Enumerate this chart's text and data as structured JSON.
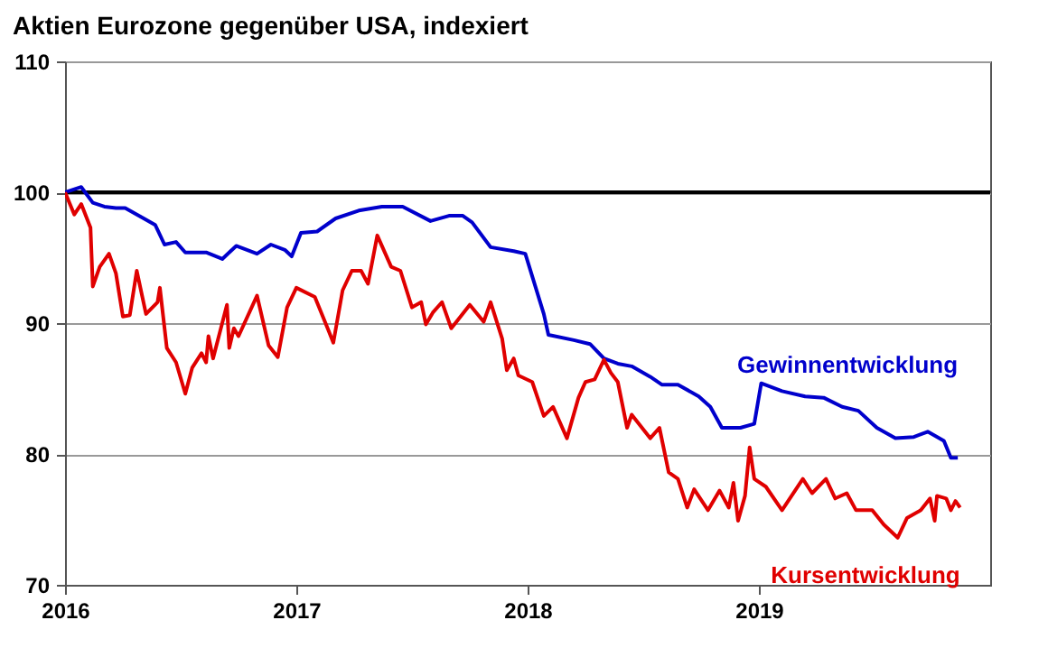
{
  "chart_data": {
    "type": "line",
    "title": "Aktien Eurozone gegenüber USA, indexiert",
    "xlim": [
      2016,
      2020
    ],
    "xticks": [
      2016,
      2017,
      2018,
      2019
    ],
    "ylim": [
      70,
      110
    ],
    "yticks": [
      70,
      80,
      90,
      100,
      110
    ],
    "grid": "y",
    "legend": false,
    "marker": "none",
    "line_style": "solid",
    "ref_lines": [
      {
        "axis": "y",
        "value": 100,
        "color": "#000000"
      }
    ],
    "series": [
      {
        "name": "Gewinnentwicklung",
        "color": "#0000cc",
        "x": [
          2016.0,
          2016.07,
          2016.12,
          2016.17,
          2016.22,
          2016.26,
          2016.34,
          2016.39,
          2016.43,
          2016.48,
          2016.52,
          2016.61,
          2016.68,
          2016.74,
          2016.83,
          2016.89,
          2016.95,
          2016.98,
          2017.02,
          2017.09,
          2017.17,
          2017.27,
          2017.37,
          2017.46,
          2017.58,
          2017.66,
          2017.72,
          2017.76,
          2017.84,
          2017.94,
          2017.99,
          2018.07,
          2018.09,
          2018.2,
          2018.27,
          2018.33,
          2018.39,
          2018.45,
          2018.53,
          2018.58,
          2018.65,
          2018.74,
          2018.79,
          2018.84,
          2018.92,
          2018.98,
          2019.01,
          2019.1,
          2019.2,
          2019.28,
          2019.36,
          2019.43,
          2019.51,
          2019.59,
          2019.67,
          2019.73,
          2019.8,
          2019.83,
          2019.86
        ],
        "values": [
          100,
          100.4,
          99.2,
          98.9,
          98.8,
          98.8,
          98.0,
          97.5,
          96.0,
          96.2,
          95.4,
          95.4,
          94.9,
          95.9,
          95.3,
          96.0,
          95.6,
          95.1,
          96.9,
          97.0,
          98.0,
          98.6,
          98.9,
          98.9,
          97.8,
          98.2,
          98.2,
          97.7,
          95.8,
          95.5,
          95.3,
          90.7,
          89.1,
          88.7,
          88.4,
          87.3,
          86.9,
          86.7,
          85.9,
          85.3,
          85.3,
          84.4,
          83.6,
          82.0,
          82.0,
          82.3,
          85.4,
          84.8,
          84.4,
          84.3,
          83.6,
          83.3,
          82.0,
          81.2,
          81.3,
          81.7,
          81.0,
          79.7,
          79.7
        ]
      },
      {
        "name": "Kursentwicklung",
        "color": "#e00000",
        "x": [
          2016.0,
          2016.04,
          2016.07,
          2016.11,
          2016.12,
          2016.15,
          2016.19,
          2016.22,
          2016.25,
          2016.28,
          2016.31,
          2016.35,
          2016.4,
          2016.41,
          2016.44,
          2016.48,
          2016.52,
          2016.55,
          2016.59,
          2016.61,
          2016.62,
          2016.64,
          2016.7,
          2016.71,
          2016.73,
          2016.75,
          2016.83,
          2016.88,
          2016.92,
          2016.96,
          2017.0,
          2017.08,
          2017.14,
          2017.16,
          2017.2,
          2017.24,
          2017.28,
          2017.31,
          2017.35,
          2017.41,
          2017.45,
          2017.5,
          2017.54,
          2017.56,
          2017.59,
          2017.63,
          2017.67,
          2017.75,
          2017.81,
          2017.84,
          2017.89,
          2017.91,
          2017.94,
          2017.96,
          2018.02,
          2018.07,
          2018.11,
          2018.17,
          2018.22,
          2018.25,
          2018.29,
          2018.33,
          2018.36,
          2018.39,
          2018.43,
          2018.45,
          2018.53,
          2018.57,
          2018.61,
          2018.65,
          2018.69,
          2018.72,
          2018.78,
          2018.83,
          2018.87,
          2018.89,
          2018.91,
          2018.94,
          2018.96,
          2018.98,
          2019.03,
          2019.1,
          2019.19,
          2019.23,
          2019.29,
          2019.33,
          2019.38,
          2019.42,
          2019.49,
          2019.54,
          2019.6,
          2019.64,
          2019.7,
          2019.74,
          2019.76,
          2019.77,
          2019.81,
          2019.83,
          2019.85,
          2019.87
        ],
        "values": [
          100,
          98.3,
          99.1,
          97.3,
          92.8,
          94.3,
          95.3,
          93.8,
          90.5,
          90.6,
          94.0,
          90.7,
          91.6,
          92.7,
          88.1,
          87.0,
          84.6,
          86.6,
          87.7,
          87.0,
          89.0,
          87.3,
          91.4,
          88.1,
          89.6,
          89.0,
          92.1,
          88.3,
          87.4,
          91.2,
          92.7,
          92.0,
          89.4,
          88.5,
          92.5,
          94.0,
          94.0,
          93.0,
          96.7,
          94.3,
          94.0,
          91.2,
          91.6,
          89.9,
          90.8,
          91.6,
          89.6,
          91.4,
          90.1,
          91.6,
          88.8,
          86.4,
          87.3,
          86.0,
          85.5,
          82.9,
          83.6,
          81.2,
          84.3,
          85.5,
          85.7,
          87.2,
          86.2,
          85.5,
          82.0,
          83.0,
          81.2,
          82.0,
          78.6,
          78.1,
          75.9,
          77.3,
          75.7,
          77.2,
          75.9,
          77.8,
          74.9,
          76.8,
          80.5,
          78.1,
          77.5,
          75.7,
          78.1,
          77.0,
          78.1,
          76.6,
          77.0,
          75.7,
          75.7,
          74.6,
          73.6,
          75.1,
          75.7,
          76.6,
          74.9,
          76.8,
          76.6,
          75.7,
          76.4,
          75.9
        ]
      }
    ]
  }
}
